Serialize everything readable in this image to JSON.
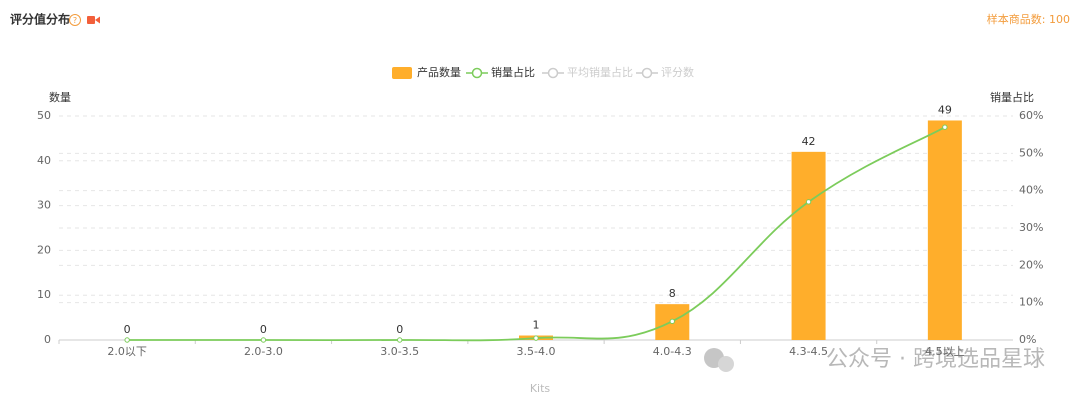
{
  "header": {
    "title": "评分值分布",
    "sample": "样本商品数: 100"
  },
  "watermark": "公众号 · 跨境选品星球",
  "chart_data": {
    "type": "bar",
    "categories": [
      "2.0以下",
      "2.0-3.0",
      "3.0-3.5",
      "3.5-4.0",
      "4.0-4.3",
      "4.3-4.5",
      "4.5以上"
    ],
    "series": [
      {
        "name": "产品数量",
        "type": "bar",
        "color": "#ffae2b",
        "values": [
          0,
          0,
          0,
          1,
          8,
          42,
          49
        ]
      },
      {
        "name": "销量占比",
        "type": "line",
        "axis": "y2",
        "color": "#7ccc5b",
        "values": [
          0,
          0,
          0,
          0.5,
          5,
          37,
          57
        ]
      },
      {
        "name": "平均销量占比",
        "type": "line",
        "color": "#cccccc",
        "hidden": true
      },
      {
        "name": "评分数",
        "type": "line",
        "color": "#cccccc",
        "hidden": true
      }
    ],
    "ylabel": "数量",
    "y2label": "销量占比",
    "xlabel": "Kits",
    "ylim": [
      0,
      50
    ],
    "yticks": [
      0,
      10,
      20,
      30,
      40,
      50
    ],
    "y2lim": [
      0,
      60
    ],
    "y2ticks": [
      {
        "value": 0,
        "label": "0%"
      },
      {
        "value": 10,
        "label": "10%"
      },
      {
        "value": 20,
        "label": "20%"
      },
      {
        "value": 30,
        "label": "30%"
      },
      {
        "value": 40,
        "label": "40%"
      },
      {
        "value": 50,
        "label": "50%"
      },
      {
        "value": 60,
        "label": "60%"
      }
    ],
    "grid": true
  }
}
